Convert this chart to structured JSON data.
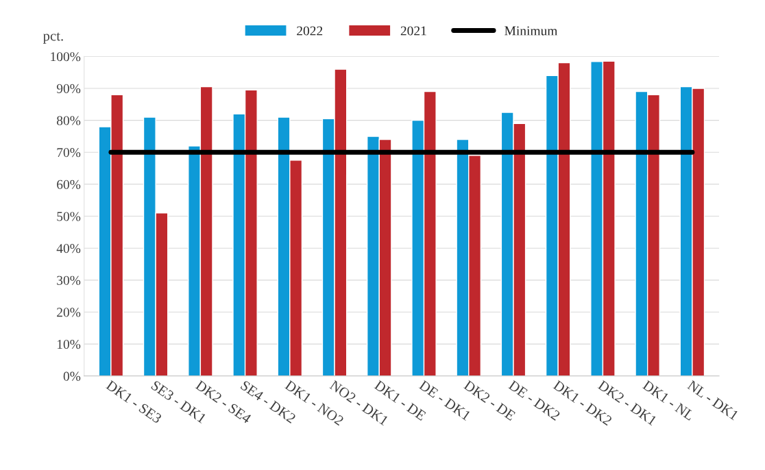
{
  "chart_data": {
    "type": "bar",
    "ylabel": "pct.",
    "categories": [
      "DK1 - SE3",
      "SE3 - DK1",
      "DK2 - SE4",
      "SE4 - DK2",
      "DK1 - NO2",
      "NO2 - DK1",
      "DK1 - DE",
      "DE - DK1",
      "DK2 - DE",
      "DE - DK2",
      "DK1 - DK2",
      "DK2 - DK1",
      "DK1 - NL",
      "NL - DK1"
    ],
    "series": [
      {
        "name": "2022",
        "color": "#0e9ad7",
        "values": [
          78,
          81,
          72,
          82,
          81,
          80.5,
          75,
          80,
          74,
          82.5,
          94,
          98.4,
          89,
          90.5
        ]
      },
      {
        "name": "2021",
        "color": "#c0282d",
        "values": [
          88,
          51,
          90.5,
          89.5,
          67.5,
          96,
          74,
          89,
          69,
          79,
          98,
          98.5,
          88,
          90
        ]
      },
      {
        "name": "Minimum",
        "type": "line",
        "color": "#000000",
        "values": [
          70,
          70,
          70,
          70,
          70,
          70,
          70,
          70,
          70,
          70,
          70,
          70,
          70,
          70
        ]
      }
    ],
    "ylim": [
      0,
      100
    ],
    "yticks": [
      {
        "value": 0,
        "label": "0%"
      },
      {
        "value": 10,
        "label": "10%"
      },
      {
        "value": 20,
        "label": "20%"
      },
      {
        "value": 30,
        "label": "30%"
      },
      {
        "value": 40,
        "label": "40%"
      },
      {
        "value": 50,
        "label": "50%"
      },
      {
        "value": 60,
        "label": "60%"
      },
      {
        "value": 70,
        "label": "70%"
      },
      {
        "value": 80,
        "label": "80%"
      },
      {
        "value": 90,
        "label": "90%"
      },
      {
        "value": 100,
        "label": "100%"
      }
    ],
    "grid": "y",
    "legend": "top"
  }
}
